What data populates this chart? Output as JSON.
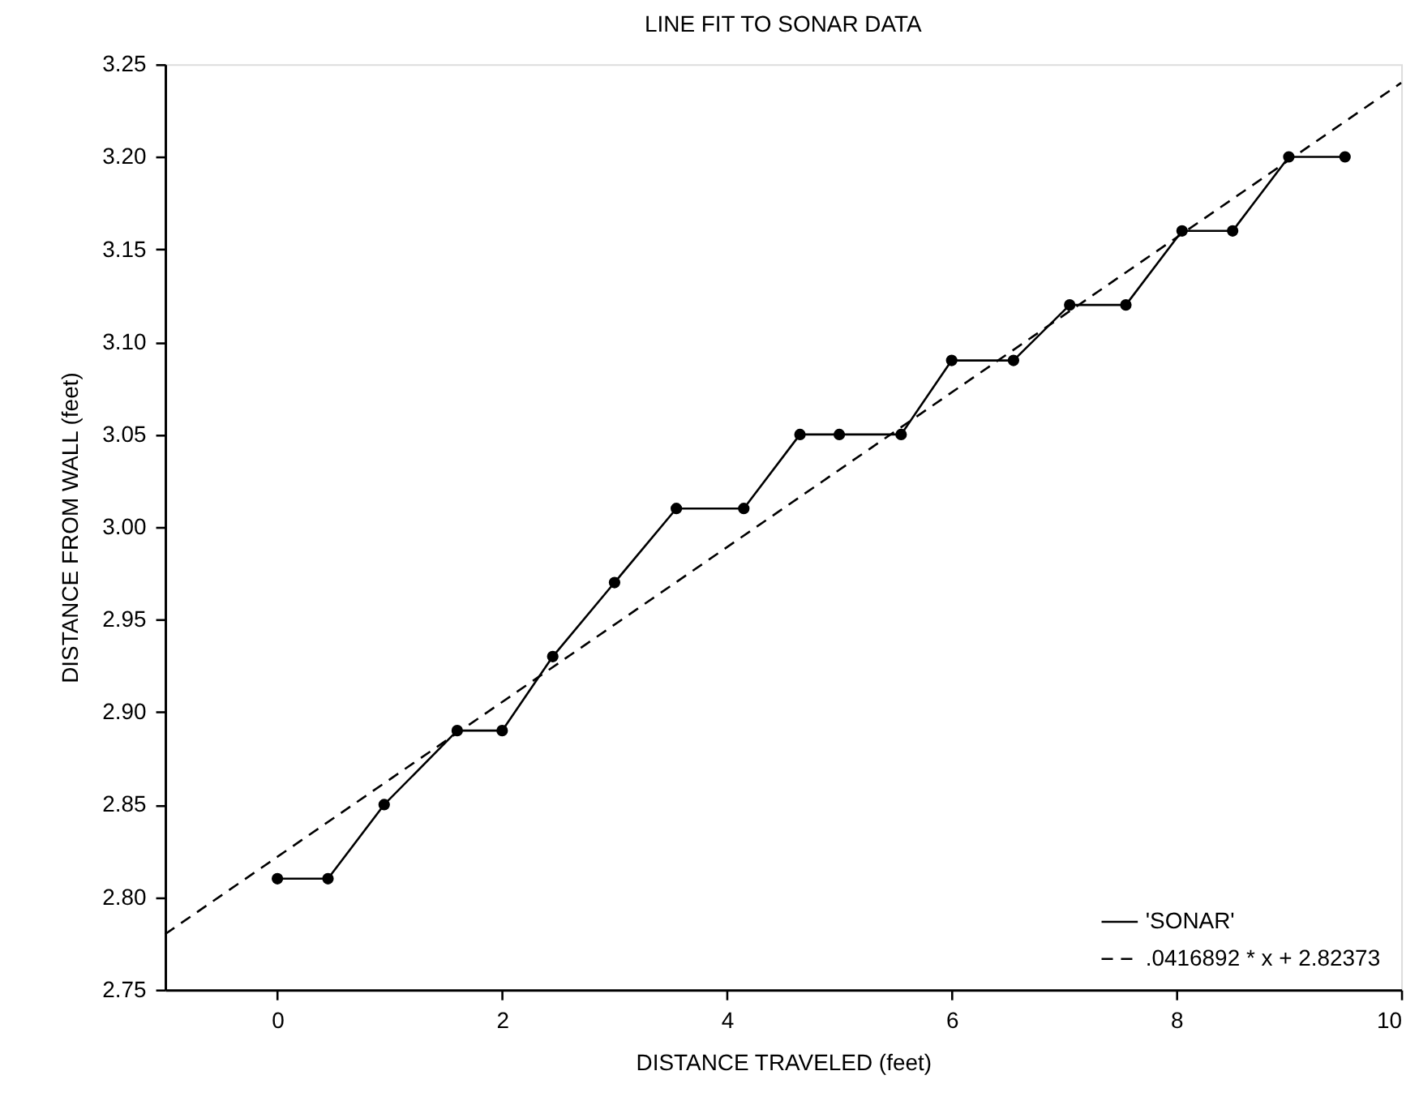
{
  "chart_data": {
    "type": "line",
    "title": "LINE FIT TO SONAR DATA",
    "xlabel": "DISTANCE TRAVELED (feet)",
    "ylabel": "DISTANCE FROM WALL (feet)",
    "xlim": [
      -1,
      10
    ],
    "xticks": [
      0,
      2,
      4,
      6,
      8,
      10
    ],
    "ylim": [
      2.75,
      3.25
    ],
    "yticks": [
      2.75,
      {
        "value": 2.8,
        "label": "2.80"
      },
      2.85,
      {
        "value": 2.9,
        "label": "2.90"
      },
      2.95,
      {
        "value": 3.0,
        "label": "3.00"
      },
      3.05,
      {
        "value": 3.1,
        "label": "3.10"
      },
      3.15,
      {
        "value": 3.2,
        "label": "3.20"
      },
      3.25
    ],
    "grid": false,
    "legend": "bottom right",
    "series": [
      {
        "name": "'SONAR'",
        "color": "#000000",
        "marker": "circle",
        "line_style": "solid",
        "x": [
          0,
          0.45,
          0.95,
          1.6,
          2.0,
          2.45,
          3.0,
          3.55,
          4.15,
          4.65,
          5.0,
          5.55,
          6.0,
          6.55,
          7.05,
          7.55,
          8.05,
          8.5,
          9.0,
          9.5
        ],
        "values": [
          2.81,
          2.81,
          2.85,
          2.89,
          2.89,
          2.93,
          2.97,
          3.01,
          3.01,
          3.05,
          3.05,
          3.05,
          3.09,
          3.09,
          3.12,
          3.12,
          3.16,
          3.16,
          3.2,
          3.2
        ]
      },
      {
        "name": ".0416892 * x + 2.82373",
        "color": "#000000",
        "marker": "none",
        "line_style": "dashed",
        "x": [
          -1,
          10
        ],
        "values": [
          2.78,
          3.24
        ]
      }
    ]
  }
}
